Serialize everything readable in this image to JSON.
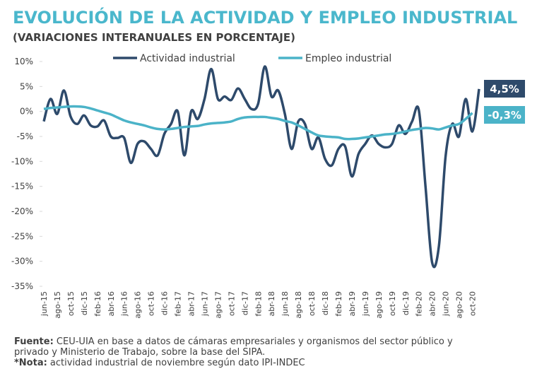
{
  "chart_data": {
    "type": "line",
    "title": "EVOLUCIÓN DE LA ACTIVIDAD Y EMPLEO INDUSTRIAL",
    "subtitle": "(VARIACIONES INTERANUALES EN PORCENTAJE)",
    "categories": [
      "jun-15",
      null,
      "ago-15",
      null,
      "oct-15",
      null,
      "dic-15",
      null,
      "feb-16",
      null,
      "abr-16",
      null,
      "jun-16",
      null,
      "ago-16",
      null,
      "oct-16",
      null,
      "dic-16",
      null,
      "feb-17",
      null,
      "abr-17",
      null,
      "jun-17",
      null,
      "ago-17",
      null,
      "oct-17",
      null,
      "dic-17",
      null,
      "feb-18",
      null,
      "abr-18",
      null,
      "jun-18",
      null,
      "ago-18",
      null,
      "oct-18",
      null,
      "dic-18",
      null,
      "feb-19",
      null,
      "abr-19",
      null,
      "jun-19",
      null,
      "ago-19",
      null,
      "oct-19",
      null,
      "dic-19",
      null,
      "feb-20",
      null,
      "abr-20",
      null,
      "jun-20",
      null,
      "ago-20",
      null,
      "oct-20",
      null
    ],
    "series": [
      {
        "name": "Actividad industrial",
        "color": "#2e4a6b",
        "values": [
          -2,
          2.5,
          -0.5,
          4.2,
          -1,
          -2.5,
          -0.8,
          -2.8,
          -3,
          -1.8,
          -5,
          -5.3,
          -5.3,
          -10.3,
          -6.5,
          -6,
          -7.5,
          -8.8,
          -4.5,
          -2.5,
          0,
          -8.8,
          0,
          -1.5,
          2.5,
          8.5,
          2.5,
          3,
          2.3,
          4.6,
          2.5,
          0.5,
          1.5,
          9,
          3,
          4.2,
          -0.5,
          -7.5,
          -2,
          -2.5,
          -7.5,
          -5.2,
          -9.5,
          -10.8,
          -7.5,
          -7,
          -13,
          -8.5,
          -6.5,
          -4.8,
          -6.5,
          -7.2,
          -6.5,
          -2.8,
          -4.5,
          -2,
          0.3,
          -15,
          -30.3,
          -27,
          -9,
          -2.5,
          -5,
          2.5,
          -4,
          4.5
        ],
        "value_labels": [
          null,
          null,
          null,
          null,
          null,
          null,
          null,
          null,
          null,
          null,
          null,
          null,
          null,
          null,
          null,
          null,
          null,
          null,
          null,
          null,
          null,
          null,
          null,
          null,
          null,
          null,
          null,
          null,
          null,
          null,
          null,
          null,
          null,
          null,
          null,
          null,
          null,
          null,
          null,
          null,
          null,
          null,
          null,
          null,
          null,
          null,
          null,
          null,
          null,
          null,
          null,
          null,
          null,
          null,
          null,
          null,
          null,
          null,
          null,
          null,
          null,
          null,
          null,
          null,
          null,
          "4,5%"
        ]
      },
      {
        "name": "Empleo industrial",
        "color": "#4bb3c8",
        "values": [
          0.5,
          0.7,
          0.8,
          0.9,
          1.0,
          1.0,
          0.9,
          0.6,
          0.2,
          -0.2,
          -0.6,
          -1.2,
          -1.8,
          -2.2,
          -2.5,
          -2.8,
          -3.2,
          -3.5,
          -3.6,
          -3.5,
          -3.3,
          -3.1,
          -3.0,
          -2.9,
          -2.6,
          -2.4,
          -2.3,
          -2.2,
          -2.0,
          -1.5,
          -1.2,
          -1.1,
          -1.1,
          -1.1,
          -1.3,
          -1.5,
          -1.9,
          -2.2,
          -2.8,
          -3.5,
          -4.2,
          -4.8,
          -5.0,
          -5.1,
          -5.2,
          -5.5,
          -5.5,
          -5.4,
          -5.2,
          -5.0,
          -4.8,
          -4.6,
          -4.5,
          -4.3,
          -4.0,
          -3.7,
          -3.5,
          -3.3,
          -3.4,
          -3.6,
          -3.2,
          -2.8,
          -2.5,
          -1.5,
          -0.3,
          null
        ],
        "value_labels": [
          null,
          null,
          null,
          null,
          null,
          null,
          null,
          null,
          null,
          null,
          null,
          null,
          null,
          null,
          null,
          null,
          null,
          null,
          null,
          null,
          null,
          null,
          null,
          null,
          null,
          null,
          null,
          null,
          null,
          null,
          null,
          null,
          null,
          null,
          null,
          null,
          null,
          null,
          null,
          null,
          null,
          null,
          null,
          null,
          null,
          null,
          null,
          null,
          null,
          null,
          null,
          null,
          null,
          null,
          null,
          null,
          null,
          null,
          null,
          null,
          null,
          null,
          null,
          null,
          "-0,3%",
          null
        ]
      }
    ],
    "ylim": [
      -35,
      10
    ],
    "yticks": [
      {
        "value": 10,
        "label": "10%"
      },
      {
        "value": 5,
        "label": "5%"
      },
      {
        "value": 0,
        "label": "0%"
      },
      {
        "value": -5,
        "label": "-5%"
      },
      {
        "value": -10,
        "label": "-10%"
      },
      {
        "value": -15,
        "label": "-15%"
      },
      {
        "value": -20,
        "label": "-20%"
      },
      {
        "value": -25,
        "label": "-25%"
      },
      {
        "value": -30,
        "label": "-30%"
      },
      {
        "value": -35,
        "label": "-35%"
      }
    ],
    "grid": false,
    "legend": "top",
    "footnotes": [
      {
        "label": "Fuente:",
        "text": " CEU-UIA en base a datos de cámaras empresariales y organismos del sector público y"
      },
      {
        "label": null,
        "text": "privado y Ministerio de Trabajo, sobre la base del SIPA."
      },
      {
        "label": "*Nota:",
        "text": " actividad industrial de noviembre según dato IPI-INDEC"
      }
    ]
  }
}
